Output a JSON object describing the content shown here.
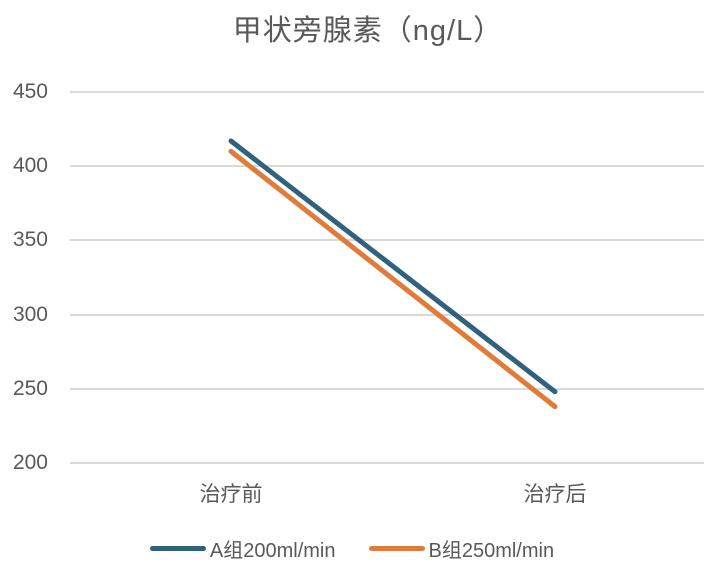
{
  "title": "甲状旁腺素（ng/L）",
  "chart_data": {
    "type": "line",
    "title": "甲状旁腺素（ng/L）",
    "categories": [
      "治疗前",
      "治疗后"
    ],
    "series": [
      {
        "name": "A组200ml/min",
        "color": "#30617E",
        "values": [
          417,
          248
        ]
      },
      {
        "name": "B组250ml/min",
        "color": "#E07B3A",
        "values": [
          410,
          238
        ]
      }
    ],
    "xlabel": "",
    "ylabel": "",
    "ylim": [
      200,
      450
    ],
    "yticks": [
      450,
      400,
      350,
      300,
      250,
      200
    ],
    "grid": true,
    "legend_position": "bottom"
  },
  "colors": {
    "text": "#595959",
    "gridline": "#D9D9D9",
    "background": "#FFFFFF",
    "series_a": "#30617E",
    "series_b": "#E07B3A"
  }
}
